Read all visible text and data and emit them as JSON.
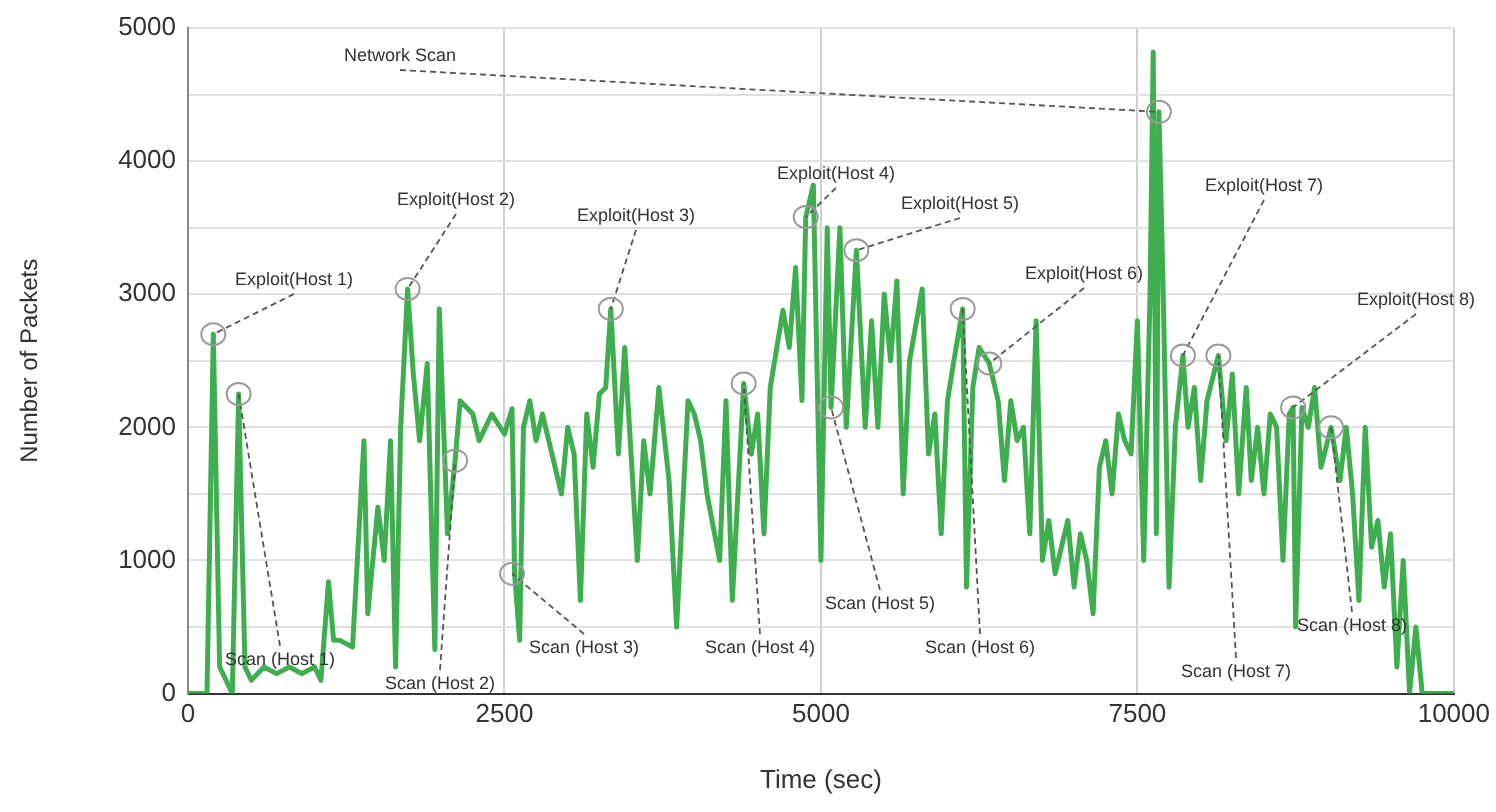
{
  "chart_data": {
    "type": "line",
    "xlabel": "Time (sec)",
    "ylabel": "Number of Packets",
    "xlim": [
      0,
      10000
    ],
    "xticks": [
      0,
      2500,
      5000,
      7500,
      10000
    ],
    "ylim": [
      0,
      5000
    ],
    "yticks": [
      0,
      {
        "value": 500,
        "label": null
      },
      1000,
      {
        "value": 1500,
        "label": null
      },
      2000,
      {
        "value": 2500,
        "label": null
      },
      3000,
      {
        "value": 3500,
        "label": null
      },
      4000,
      {
        "value": 4500,
        "label": null
      },
      5000
    ],
    "grid": true,
    "legend": false,
    "marker": "none",
    "line_style": "solid",
    "series": [
      {
        "color": "#3fae4f",
        "x": [
          0,
          150,
          200,
          250,
          300,
          350,
          400,
          450,
          500,
          550,
          600,
          700,
          800,
          900,
          1000,
          1050,
          1110,
          1150,
          1200,
          1300,
          1390,
          1420,
          1500,
          1550,
          1600,
          1640,
          1680,
          1735,
          1780,
          1830,
          1890,
          1950,
          1985,
          2050,
          2110,
          2150,
          2250,
          2300,
          2400,
          2500,
          2560,
          2580,
          2620,
          2650,
          2700,
          2750,
          2800,
          2900,
          2950,
          3000,
          3050,
          3100,
          3150,
          3200,
          3250,
          3300,
          3340,
          3400,
          3450,
          3550,
          3600,
          3650,
          3720,
          3800,
          3860,
          3950,
          4000,
          4050,
          4100,
          4200,
          4250,
          4300,
          4390,
          4450,
          4500,
          4550,
          4600,
          4700,
          4750,
          4800,
          4850,
          4880,
          4940,
          5000,
          5050,
          5080,
          5150,
          5200,
          5280,
          5350,
          5400,
          5450,
          5500,
          5550,
          5600,
          5650,
          5700,
          5800,
          5850,
          5900,
          5950,
          6000,
          6050,
          6120,
          6150,
          6200,
          6250,
          6330,
          6400,
          6450,
          6500,
          6550,
          6600,
          6650,
          6700,
          6750,
          6800,
          6850,
          6900,
          6950,
          7000,
          7050,
          7100,
          7150,
          7200,
          7250,
          7300,
          7350,
          7400,
          7450,
          7500,
          7550,
          7600,
          7625,
          7650,
          7670,
          7700,
          7750,
          7800,
          7860,
          7900,
          7950,
          8000,
          8050,
          8140,
          8200,
          8250,
          8300,
          8360,
          8400,
          8450,
          8500,
          8550,
          8600,
          8650,
          8700,
          8730,
          8750,
          8800,
          8850,
          8900,
          8950,
          9030,
          9100,
          9150,
          9200,
          9250,
          9300,
          9350,
          9400,
          9450,
          9500,
          9550,
          9600,
          9650,
          9700,
          9750,
          10000
        ],
        "values": [
          0,
          0,
          2700,
          200,
          100,
          0,
          2250,
          200,
          100,
          150,
          200,
          150,
          200,
          150,
          200,
          100,
          840,
          400,
          400,
          350,
          1900,
          600,
          1400,
          1000,
          1900,
          200,
          2000,
          3040,
          2400,
          1900,
          2480,
          330,
          2890,
          1200,
          1750,
          2200,
          2100,
          1900,
          2100,
          1950,
          2140,
          900,
          400,
          2000,
          2200,
          1900,
          2100,
          1700,
          1500,
          2000,
          1800,
          700,
          2100,
          1700,
          2250,
          2300,
          2890,
          1800,
          2600,
          1000,
          1900,
          1500,
          2300,
          1600,
          500,
          2200,
          2100,
          1900,
          1500,
          1000,
          2200,
          700,
          2330,
          1800,
          2100,
          1200,
          2300,
          2880,
          2600,
          3200,
          2200,
          3580,
          3820,
          1000,
          3500,
          2150,
          3500,
          2000,
          3330,
          2000,
          2800,
          2000,
          3000,
          2500,
          3100,
          1500,
          2500,
          3040,
          1800,
          2100,
          1200,
          2200,
          2500,
          2890,
          800,
          2300,
          2600,
          2480,
          2200,
          1600,
          2200,
          1900,
          2000,
          1200,
          2800,
          1000,
          1300,
          900,
          1100,
          1300,
          800,
          1200,
          1000,
          600,
          1700,
          1900,
          1500,
          2100,
          1900,
          1800,
          2800,
          1000,
          3000,
          4820,
          1200,
          4370,
          3200,
          800,
          2000,
          2540,
          2000,
          2300,
          1600,
          2200,
          2540,
          1900,
          2400,
          1500,
          2300,
          1600,
          2000,
          1500,
          2100,
          2000,
          1000,
          2100,
          2150,
          500,
          2150,
          2000,
          2300,
          1700,
          2000,
          1600,
          2000,
          1500,
          700,
          2000,
          1100,
          1300,
          800,
          1200,
          200,
          1000,
          0,
          500,
          0,
          0
        ]
      }
    ],
    "annotations": [
      {
        "text": "Network Scan",
        "x": 7670,
        "y": 4370
      },
      {
        "text": "Exploit(Host 1)",
        "x": 200,
        "y": 2700
      },
      {
        "text": "Exploit(Host 2)",
        "x": 1735,
        "y": 3040
      },
      {
        "text": "Exploit(Host 3)",
        "x": 3340,
        "y": 2890
      },
      {
        "text": "Exploit(Host 4)",
        "x": 4880,
        "y": 3580
      },
      {
        "text": "Exploit(Host 5)",
        "x": 5280,
        "y": 3330
      },
      {
        "text": "Exploit(Host 6)",
        "x": 6330,
        "y": 2480
      },
      {
        "text": "Exploit(Host 7)",
        "x": 7860,
        "y": 2540
      },
      {
        "text": "Exploit(Host 8)",
        "x": 8730,
        "y": 2150
      },
      {
        "text": "Scan (Host 1)",
        "x": 400,
        "y": 2250
      },
      {
        "text": "Scan (Host 2)",
        "x": 2110,
        "y": 1750
      },
      {
        "text": "Scan (Host 3)",
        "x": 2560,
        "y": 900
      },
      {
        "text": "Scan (Host 4)",
        "x": 4390,
        "y": 2330
      },
      {
        "text": "Scan (Host 5)",
        "x": 5080,
        "y": 2150
      },
      {
        "text": "Scan (Host 6)",
        "x": 6120,
        "y": 2890
      },
      {
        "text": "Scan (Host 7)",
        "x": 8140,
        "y": 2540
      },
      {
        "text": "Scan (Host 8)",
        "x": 9030,
        "y": 2000
      }
    ]
  }
}
